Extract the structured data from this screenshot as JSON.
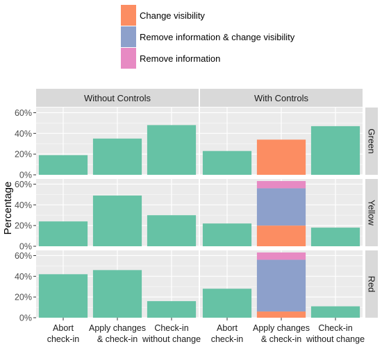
{
  "chart_data": {
    "type": "bar",
    "stacked": true,
    "ylabel": "Percentage",
    "xlabel": "",
    "ylim": [
      0,
      0.65
    ],
    "yticks": [
      "0%",
      "20%",
      "40%",
      "60%"
    ],
    "ytick_values": [
      0,
      0.2,
      0.4,
      0.6
    ],
    "grid": true,
    "legend_position": "top",
    "legend": [
      {
        "name": "Change visibility",
        "color": "#FC8D62"
      },
      {
        "name": "Remove information & change visibility",
        "color": "#8DA0CB"
      },
      {
        "name": "Remove information",
        "color": "#E78AC3"
      }
    ],
    "default_color": "#66C2A5",
    "columns": [
      "Without Controls",
      "With Controls"
    ],
    "rows": [
      "Green",
      "Yellow",
      "Red"
    ],
    "categories": [
      {
        "line1": "Abort",
        "line2": "check-in"
      },
      {
        "line1": "Apply changes",
        "line2": "& check-in"
      },
      {
        "line1": "Check-in",
        "line2": "without change"
      }
    ],
    "panels": [
      {
        "column": "Without Controls",
        "row": "Green",
        "bars": [
          [
            {
              "series": "none",
              "value": 0.19
            }
          ],
          [
            {
              "series": "none",
              "value": 0.35
            }
          ],
          [
            {
              "series": "none",
              "value": 0.48
            }
          ]
        ]
      },
      {
        "column": "With Controls",
        "row": "Green",
        "bars": [
          [
            {
              "series": "none",
              "value": 0.23
            }
          ],
          [
            {
              "series": "Change visibility",
              "value": 0.34
            }
          ],
          [
            {
              "series": "none",
              "value": 0.47
            }
          ]
        ]
      },
      {
        "column": "Without Controls",
        "row": "Yellow",
        "bars": [
          [
            {
              "series": "none",
              "value": 0.24
            }
          ],
          [
            {
              "series": "none",
              "value": 0.49
            }
          ],
          [
            {
              "series": "none",
              "value": 0.3
            }
          ]
        ]
      },
      {
        "column": "With Controls",
        "row": "Yellow",
        "bars": [
          [
            {
              "series": "none",
              "value": 0.22
            }
          ],
          [
            {
              "series": "Change visibility",
              "value": 0.2
            },
            {
              "series": "Remove information & change visibility",
              "value": 0.36
            },
            {
              "series": "Remove information",
              "value": 0.07
            }
          ],
          [
            {
              "series": "none",
              "value": 0.18
            }
          ]
        ]
      },
      {
        "column": "Without Controls",
        "row": "Red",
        "bars": [
          [
            {
              "series": "none",
              "value": 0.42
            }
          ],
          [
            {
              "series": "none",
              "value": 0.46
            }
          ],
          [
            {
              "series": "none",
              "value": 0.16
            }
          ]
        ]
      },
      {
        "column": "With Controls",
        "row": "Red",
        "bars": [
          [
            {
              "series": "none",
              "value": 0.28
            }
          ],
          [
            {
              "series": "Change visibility",
              "value": 0.06
            },
            {
              "series": "Remove information & change visibility",
              "value": 0.5
            },
            {
              "series": "Remove information",
              "value": 0.07
            }
          ],
          [
            {
              "series": "none",
              "value": 0.11
            }
          ]
        ]
      }
    ]
  }
}
